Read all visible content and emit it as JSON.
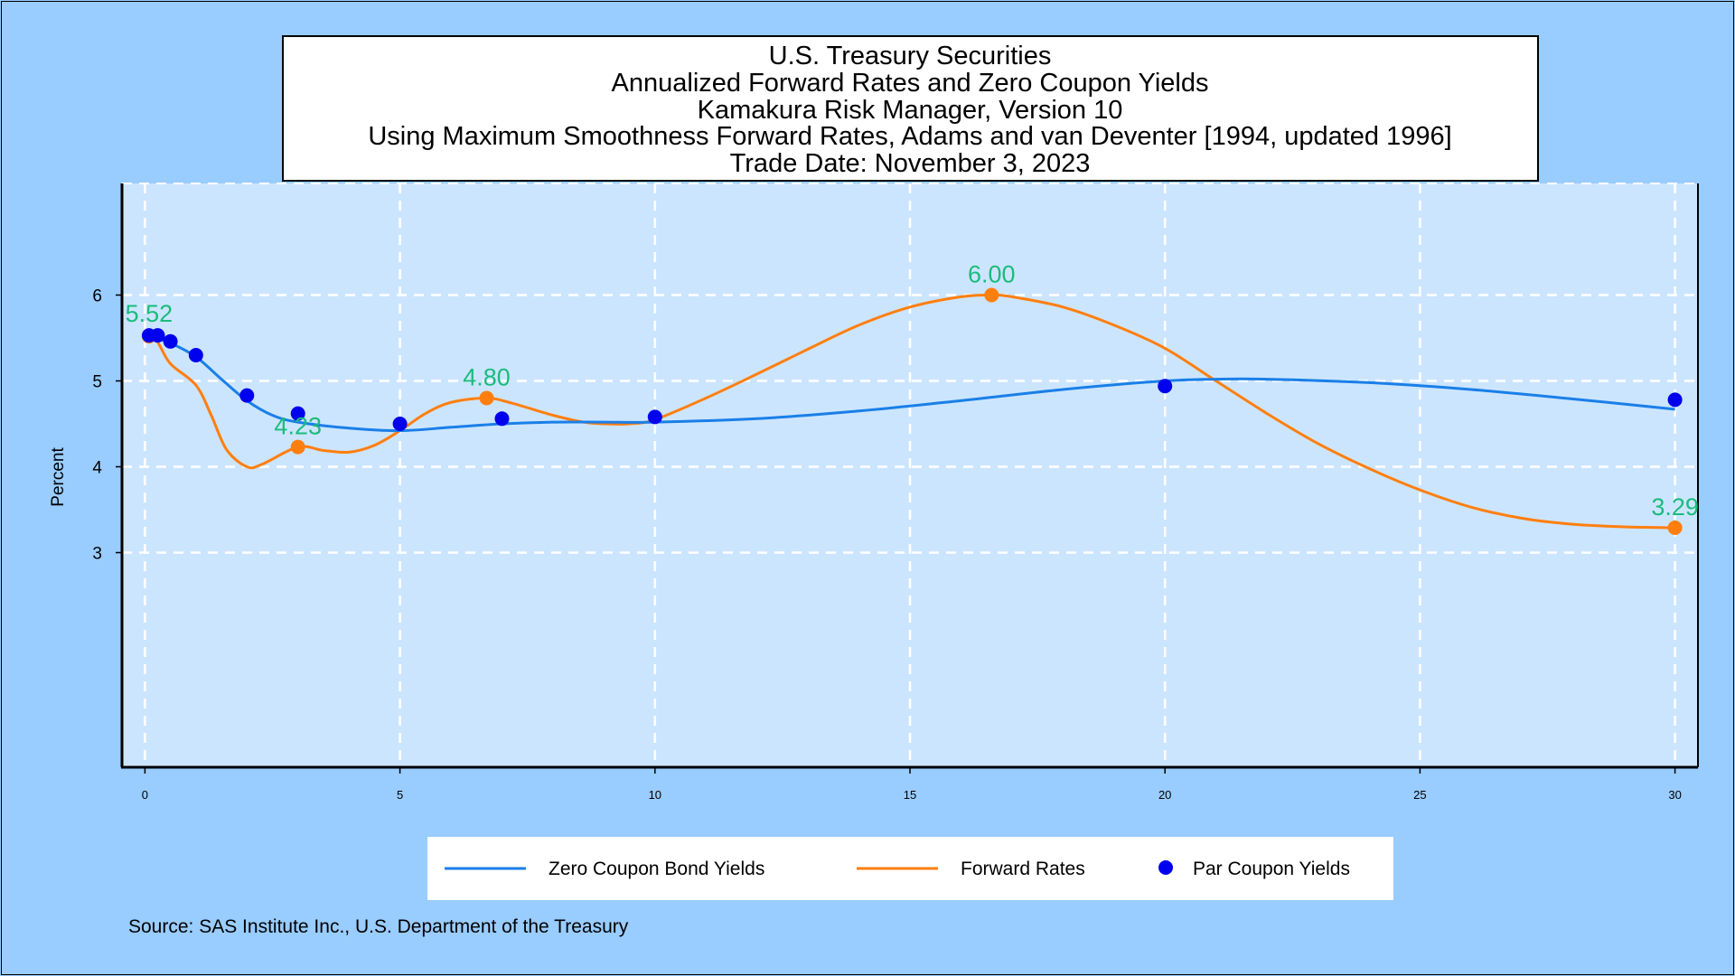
{
  "title_lines": [
    "U.S. Treasury Securities",
    "Annualized Forward Rates and Zero Coupon Yields",
    "Kamakura Risk Manager, Version 10",
    "Using Maximum Smoothness Forward Rates, Adams and van Deventer [1994, updated 1996]",
    "Trade Date:   November 3, 2023"
  ],
  "source": "Source: SAS Institute Inc., U.S. Department of the Treasury",
  "colors": {
    "background": "#99ccff",
    "plot_background": "#cce5ff",
    "zero_coupon": "#1a7fe8",
    "forward": "#ff7f0e",
    "par": "#0000ee",
    "annotation": "#1abc7c",
    "grid": "#ffffff"
  },
  "chart_data": {
    "type": "line",
    "ylabel": "Percent",
    "xlabel": "",
    "xlim": [
      -0.45,
      30.45
    ],
    "ylim": [
      0.5,
      7.3
    ],
    "xticks": [
      0,
      5,
      10,
      15,
      20,
      25,
      30
    ],
    "yticks": [
      3,
      4,
      5,
      6
    ],
    "grid": true,
    "legend_position": "bottom",
    "series": [
      {
        "name": "Zero Coupon Bond Yields",
        "style": "line",
        "x": [
          0.08,
          0.5,
          1,
          1.5,
          2,
          2.5,
          3,
          4,
          5,
          6,
          7,
          8,
          9,
          10,
          12,
          14,
          16,
          18,
          20,
          21,
          22,
          24,
          26,
          28,
          30
        ],
        "y": [
          5.52,
          5.44,
          5.28,
          5.02,
          4.77,
          4.6,
          4.52,
          4.45,
          4.42,
          4.46,
          4.5,
          4.52,
          4.52,
          4.52,
          4.56,
          4.65,
          4.77,
          4.9,
          5.0,
          5.02,
          5.02,
          4.98,
          4.9,
          4.79,
          4.67
        ]
      },
      {
        "name": "Forward Rates",
        "style": "line",
        "x": [
          0.08,
          0.25,
          0.5,
          1,
          1.3,
          1.6,
          2,
          2.3,
          3,
          3.5,
          4,
          4.5,
          5,
          5.5,
          6,
          6.7,
          7.2,
          8,
          8.6,
          9,
          9.5,
          10,
          11,
          12,
          13,
          14,
          15,
          16,
          16.6,
          17,
          18,
          19,
          20,
          21,
          22,
          23,
          24,
          25,
          26,
          27,
          28,
          29,
          30
        ],
        "y": [
          5.52,
          5.45,
          5.2,
          4.95,
          4.6,
          4.2,
          4.0,
          4.03,
          4.23,
          4.19,
          4.17,
          4.25,
          4.42,
          4.62,
          4.75,
          4.8,
          4.74,
          4.6,
          4.52,
          4.5,
          4.5,
          4.55,
          4.8,
          5.08,
          5.37,
          5.65,
          5.86,
          5.98,
          6.0,
          5.98,
          5.86,
          5.65,
          5.38,
          5.0,
          4.62,
          4.27,
          3.98,
          3.73,
          3.53,
          3.4,
          3.33,
          3.3,
          3.29
        ]
      },
      {
        "name": "Par Coupon Yields",
        "style": "scatter",
        "x": [
          0.08,
          0.25,
          0.5,
          1,
          2,
          3,
          5,
          7,
          10,
          20,
          30
        ],
        "y": [
          5.53,
          5.53,
          5.46,
          5.3,
          4.83,
          4.62,
          4.5,
          4.56,
          4.58,
          4.94,
          4.78
        ]
      }
    ],
    "annotations": [
      {
        "label": "5.52",
        "x": 0.08,
        "y": 5.52,
        "dx": 0,
        "dy": -16
      },
      {
        "label": "4.23",
        "x": 3,
        "y": 4.23,
        "dx": 0,
        "dy": -14
      },
      {
        "label": "4.80",
        "x": 6.7,
        "y": 4.8,
        "dx": 0,
        "dy": -14
      },
      {
        "label": "6.00",
        "x": 16.6,
        "y": 6.0,
        "dx": 0,
        "dy": -14
      },
      {
        "label": "3.29",
        "x": 30,
        "y": 3.29,
        "dx": 0,
        "dy": -14
      }
    ]
  }
}
